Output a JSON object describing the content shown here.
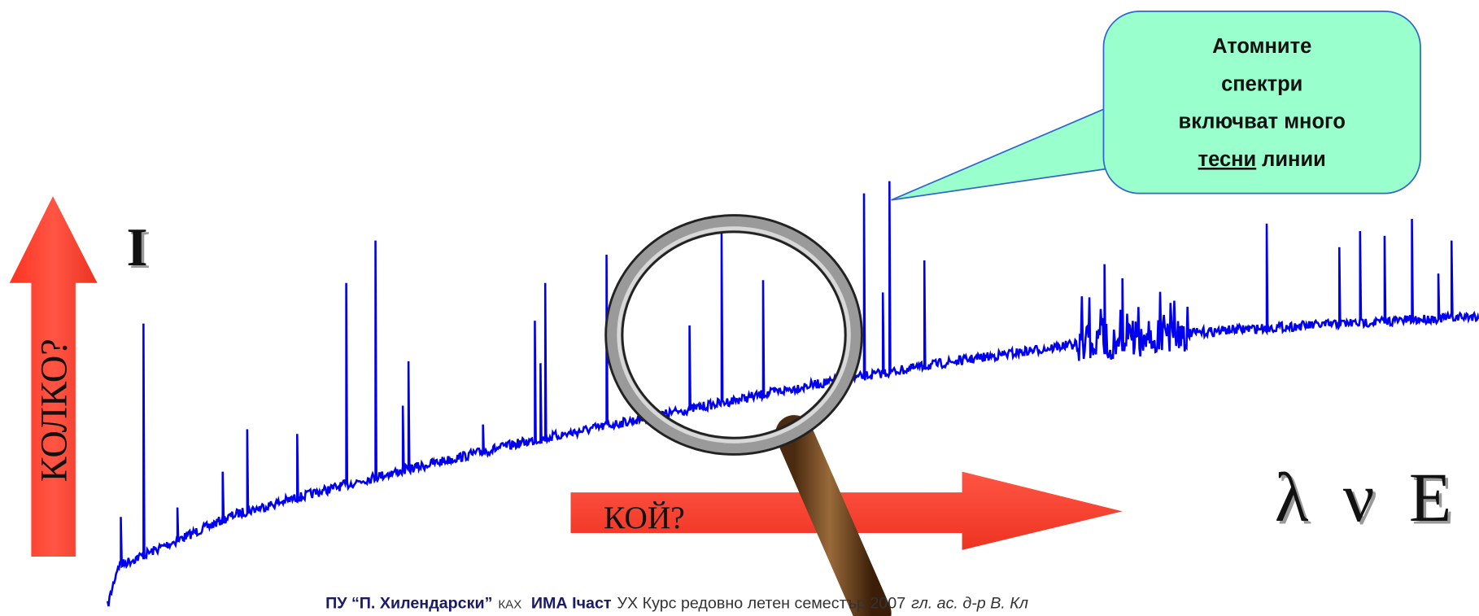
{
  "callout": {
    "line1": "Атомните",
    "line2": "спектри",
    "line3": "включват много",
    "underlined": "тесни",
    "line4_rest": "линии"
  },
  "labels": {
    "intensity": "I",
    "how_much": "КОЛКО?",
    "which": "КОЙ?",
    "symbols": "λ ν E"
  },
  "footer": {
    "university": "ПУ “П. Хилендарски”",
    "department": "КАХ",
    "course": "ИМА Iчаст",
    "rest": "УХ Курс редовно летен семестър 2007",
    "author": "гл. ас. д-р В. Кл"
  }
}
